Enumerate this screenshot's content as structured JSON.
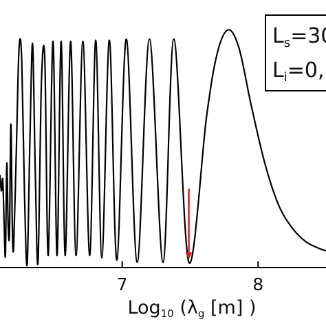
{
  "chart_data": {
    "type": "line",
    "title": "",
    "xlabel": {
      "main": "Log",
      "sub": "10",
      "rest": " (λ",
      "sub2": "g",
      "tail": " [m] )"
    },
    "ylabel": "",
    "xlim": [
      6.1,
      8.5
    ],
    "ylim": [
      0,
      1.1
    ],
    "xticks": [
      {
        "value": 7,
        "label": "7"
      },
      {
        "value": 8,
        "label": "8"
      }
    ],
    "line_color": "#000000",
    "arrow_color": "#d41f1f",
    "series": [
      {
        "points": [
          [
            6.1,
            0.4
          ],
          [
            6.11,
            0.33
          ],
          [
            6.12,
            0.38
          ],
          [
            6.13,
            0.2
          ],
          [
            6.14,
            0.05
          ],
          [
            6.15,
            0.45
          ],
          [
            6.16,
            0.18
          ],
          [
            6.17,
            0.15
          ],
          [
            6.18,
            0.62
          ],
          [
            6.19,
            0.2
          ],
          [
            6.2,
            0.08
          ],
          [
            6.22,
            0.5
          ],
          [
            6.24,
            0.95
          ],
          [
            6.26,
            0.9
          ],
          [
            6.28,
            0.32
          ],
          [
            6.3,
            0.01
          ],
          [
            6.32,
            0.55
          ],
          [
            6.34,
            0.97
          ],
          [
            6.36,
            0.4
          ],
          [
            6.38,
            0.02
          ],
          [
            6.405,
            0.8
          ],
          [
            6.43,
            0.9
          ],
          [
            6.455,
            0.05
          ],
          [
            6.49,
            0.98
          ],
          [
            6.52,
            0.05
          ],
          [
            6.55,
            0.98
          ],
          [
            6.58,
            0.05
          ],
          [
            6.62,
            0.98
          ],
          [
            6.66,
            0.05
          ],
          [
            6.71,
            0.98
          ],
          [
            6.76,
            0.05
          ],
          [
            6.805,
            0.985
          ],
          [
            6.85,
            0.04
          ],
          [
            6.905,
            0.985
          ],
          [
            6.96,
            0.03
          ],
          [
            7.03,
            0.99
          ],
          [
            7.11,
            0.02
          ],
          [
            7.2,
            0.99
          ],
          [
            7.3,
            0.02
          ],
          [
            7.38,
            0.99
          ],
          [
            7.49,
            0.02
          ],
          [
            7.62,
            0.65
          ],
          [
            7.7,
            0.93
          ],
          [
            7.78,
            1.03
          ],
          [
            7.86,
            0.95
          ],
          [
            7.95,
            0.7
          ],
          [
            8.05,
            0.45
          ],
          [
            8.15,
            0.27
          ],
          [
            8.25,
            0.17
          ],
          [
            8.35,
            0.11
          ],
          [
            8.45,
            0.08
          ],
          [
            8.5,
            0.07
          ]
        ]
      }
    ],
    "annotation": {
      "type": "arrow",
      "x": 7.49,
      "y_from": 0.34,
      "y_to": 0.03
    },
    "legend": {
      "position": "top-right",
      "lines": [
        {
          "main": "L",
          "sub": "s",
          "rest": "=30"
        },
        {
          "main": "L",
          "sub": "i",
          "rest": "=0,"
        }
      ]
    }
  }
}
